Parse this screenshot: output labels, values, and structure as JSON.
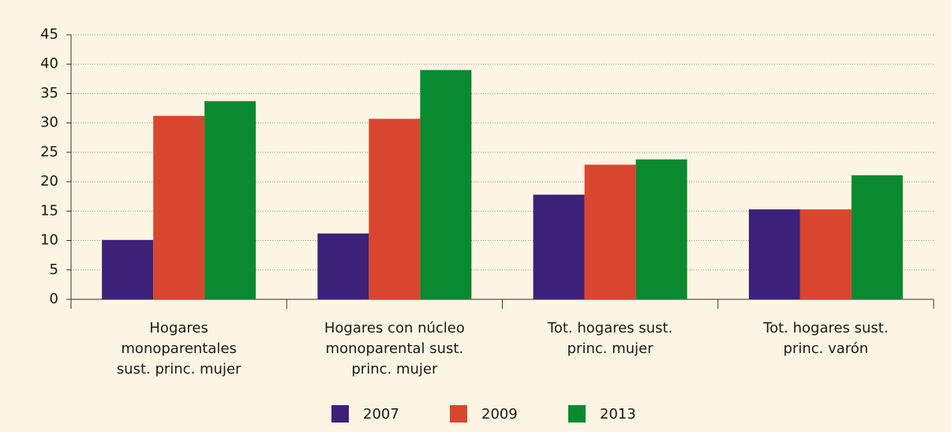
{
  "chart_data": {
    "type": "bar",
    "categories": [
      "Hogares monoparentales sust. princ. mujer",
      "Hogares con núcleo monoparental sust. princ. mujer",
      "Tot. hogares sust. princ. mujer",
      "Tot. hogares sust. princ. varón"
    ],
    "series": [
      {
        "name": "2007",
        "color": "#3d2179",
        "values": [
          10.1,
          11.2,
          17.8,
          15.3
        ]
      },
      {
        "name": "2009",
        "color": "#d9462f",
        "values": [
          31.2,
          30.7,
          22.9,
          15.3
        ]
      },
      {
        "name": "2013",
        "color": "#0a8a2e",
        "values": [
          33.7,
          39.0,
          23.8,
          21.1
        ]
      }
    ],
    "ylim": [
      0,
      45
    ],
    "yticks": [
      0,
      5,
      10,
      15,
      20,
      25,
      30,
      35,
      40,
      45
    ],
    "grid": true,
    "legend": "bottom"
  }
}
